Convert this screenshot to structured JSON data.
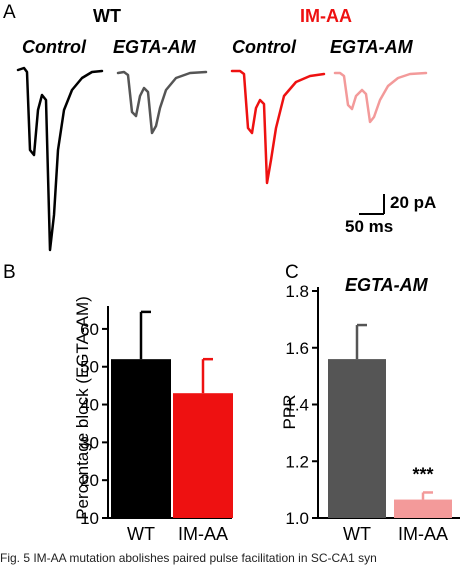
{
  "panel_a": {
    "letter": "A",
    "groups": [
      {
        "label": "WT",
        "color": "#000000"
      },
      {
        "label": "IM-AA",
        "color": "#ee1111"
      }
    ],
    "conditions": [
      "Control",
      "EGTA-AM",
      "Control",
      "EGTA-AM"
    ],
    "trace_colors": [
      "#000000",
      "#555555",
      "#ee1111",
      "#f39a9a"
    ],
    "scale_bar": {
      "amplitude": "20 pA",
      "time": "50 ms"
    }
  },
  "chart_data": [
    {
      "panel": "B",
      "type": "bar",
      "ylabel": "Percentage block (EGTA-AM)",
      "categories": [
        "WT",
        "IM-AA"
      ],
      "values": [
        52,
        43
      ],
      "errors": [
        12.5,
        9
      ],
      "colors": [
        "#000000",
        "#ee1111"
      ],
      "ylim": [
        10,
        65
      ],
      "yticks": [
        "10",
        "20",
        "30",
        "40",
        "50",
        "60"
      ]
    },
    {
      "panel": "C",
      "type": "bar",
      "title": "EGTA-AM",
      "ylabel": "PPR",
      "categories": [
        "WT",
        "IM-AA"
      ],
      "values": [
        1.56,
        1.065
      ],
      "errors": [
        0.12,
        0.025
      ],
      "colors": [
        "#555555",
        "#f39a9a"
      ],
      "ylim": [
        1.0,
        1.8
      ],
      "yticks": [
        "1.0",
        "1.2",
        "1.4",
        "1.6",
        "1.8"
      ],
      "annotation": "***"
    }
  ],
  "caption": "Fig. 5 IM-AA mutation abolishes paired pulse facilitation in SC-CA1 syn"
}
